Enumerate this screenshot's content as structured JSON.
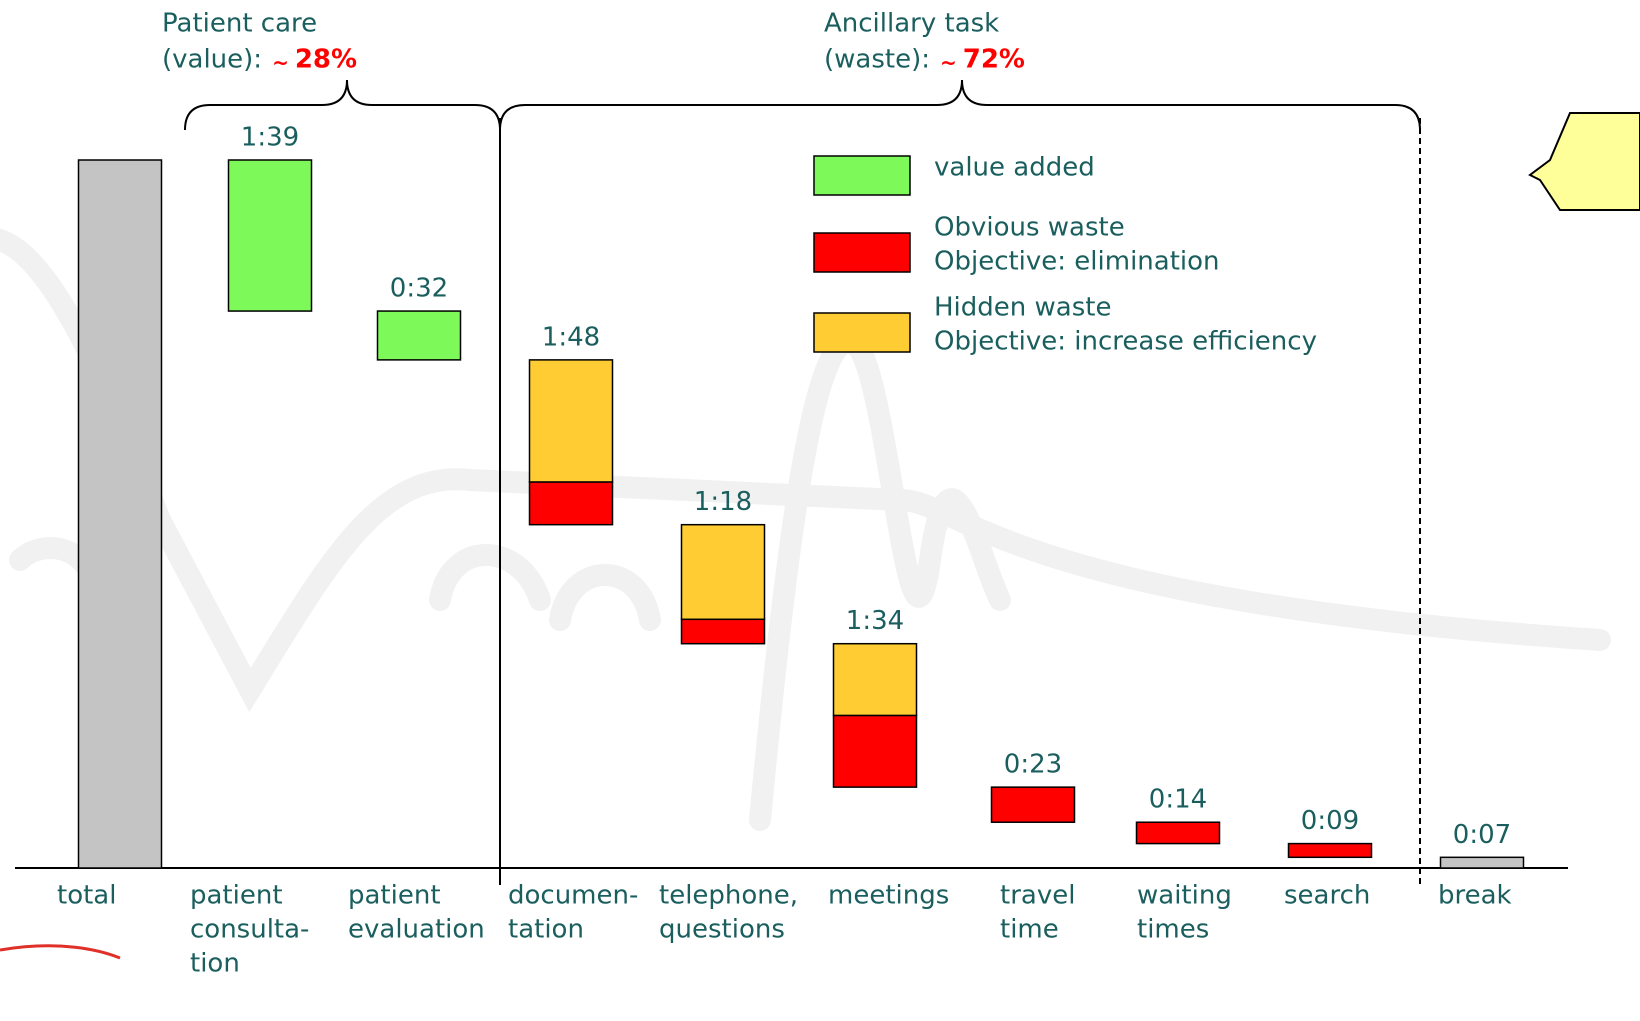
{
  "chart_data": {
    "type": "waterfall",
    "categories": [
      [
        "total"
      ],
      [
        "patient",
        "consulta-",
        "tion"
      ],
      [
        "patient",
        "evaluation"
      ],
      [
        "documen-",
        "tation"
      ],
      [
        "telephone,",
        "questions"
      ],
      [
        "meetings"
      ],
      [
        "travel",
        "time"
      ],
      [
        "waiting",
        "times"
      ],
      [
        "search"
      ],
      [
        "break"
      ]
    ],
    "series": [
      {
        "name": "value added",
        "color": "#7dfa5a",
        "values": [
          null,
          99,
          32,
          null,
          null,
          null,
          null,
          null,
          null,
          null
        ]
      },
      {
        "name": "Obvious waste",
        "description": "Objective: elimination",
        "color": "#ff0000",
        "values": [
          null,
          null,
          null,
          28,
          16,
          47,
          23,
          14,
          9,
          null
        ]
      },
      {
        "name": "Hidden waste",
        "description": "Objective: increase efficiency",
        "color": "#ffcc33",
        "values": [
          null,
          null,
          null,
          80,
          62,
          47,
          null,
          null,
          null,
          null
        ]
      },
      {
        "color": "#c4c4c4",
        "values": [
          464,
          null,
          null,
          null,
          null,
          null,
          null,
          null,
          null,
          7
        ]
      }
    ],
    "total_labels": [
      null,
      "1:39",
      "0:32",
      "1:48",
      "1:18",
      "1:34",
      "0:23",
      "0:14",
      "0:09",
      "0:07"
    ],
    "groups": [
      {
        "title": "Patient care",
        "subtitle": "(value):",
        "approx": "~",
        "share": {
          "value": 28,
          "label": "28%"
        }
      },
      {
        "title": "Ancillary task",
        "subtitle": "(waste):",
        "approx": "~",
        "share": {
          "value": 72,
          "label": "72%"
        }
      }
    ],
    "ylim": [
      0,
      464
    ]
  }
}
